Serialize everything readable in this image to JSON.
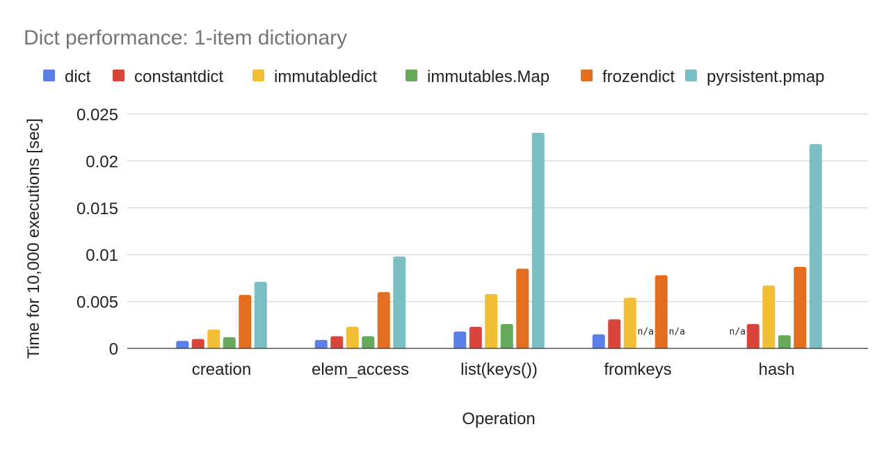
{
  "chart_data": {
    "type": "bar",
    "title": "Dict performance: 1-item dictionary",
    "xlabel": "Operation",
    "ylabel": "Time for 10,000 executions [sec]",
    "ylim": [
      0,
      0.025
    ],
    "yticks": [
      {
        "value": 0,
        "label": "0"
      },
      {
        "value": 0.005,
        "label": "0.005"
      },
      {
        "value": 0.01,
        "label": "0.01"
      },
      {
        "value": 0.015,
        "label": "0.015"
      },
      {
        "value": 0.02,
        "label": "0.02"
      },
      {
        "value": 0.025,
        "label": "0.025"
      }
    ],
    "grid": true,
    "legend_position": "top",
    "na_label": "n/a",
    "categories": [
      "creation",
      "elem_access",
      "list(keys())",
      "fromkeys",
      "hash"
    ],
    "series": [
      {
        "name": "dict",
        "color": "#5b7fe8",
        "values": [
          0.0008,
          0.0009,
          0.0018,
          0.0015,
          null
        ]
      },
      {
        "name": "constantdict",
        "color": "#d8453b",
        "values": [
          0.001,
          0.0013,
          0.0023,
          0.0031,
          0.0026
        ]
      },
      {
        "name": "immutabledict",
        "color": "#f0bf35",
        "values": [
          0.002,
          0.0023,
          0.0058,
          0.0054,
          0.0067
        ]
      },
      {
        "name": "immutables.Map",
        "color": "#66a95a",
        "values": [
          0.0012,
          0.0013,
          0.0026,
          null,
          0.0014
        ]
      },
      {
        "name": "frozendict",
        "color": "#e36e1f",
        "values": [
          0.0057,
          0.006,
          0.0085,
          0.0078,
          0.0087
        ]
      },
      {
        "name": "pyrsistent.pmap",
        "color": "#7bbfc5",
        "values": [
          0.0071,
          0.0098,
          0.023,
          null,
          0.0218
        ]
      }
    ]
  }
}
